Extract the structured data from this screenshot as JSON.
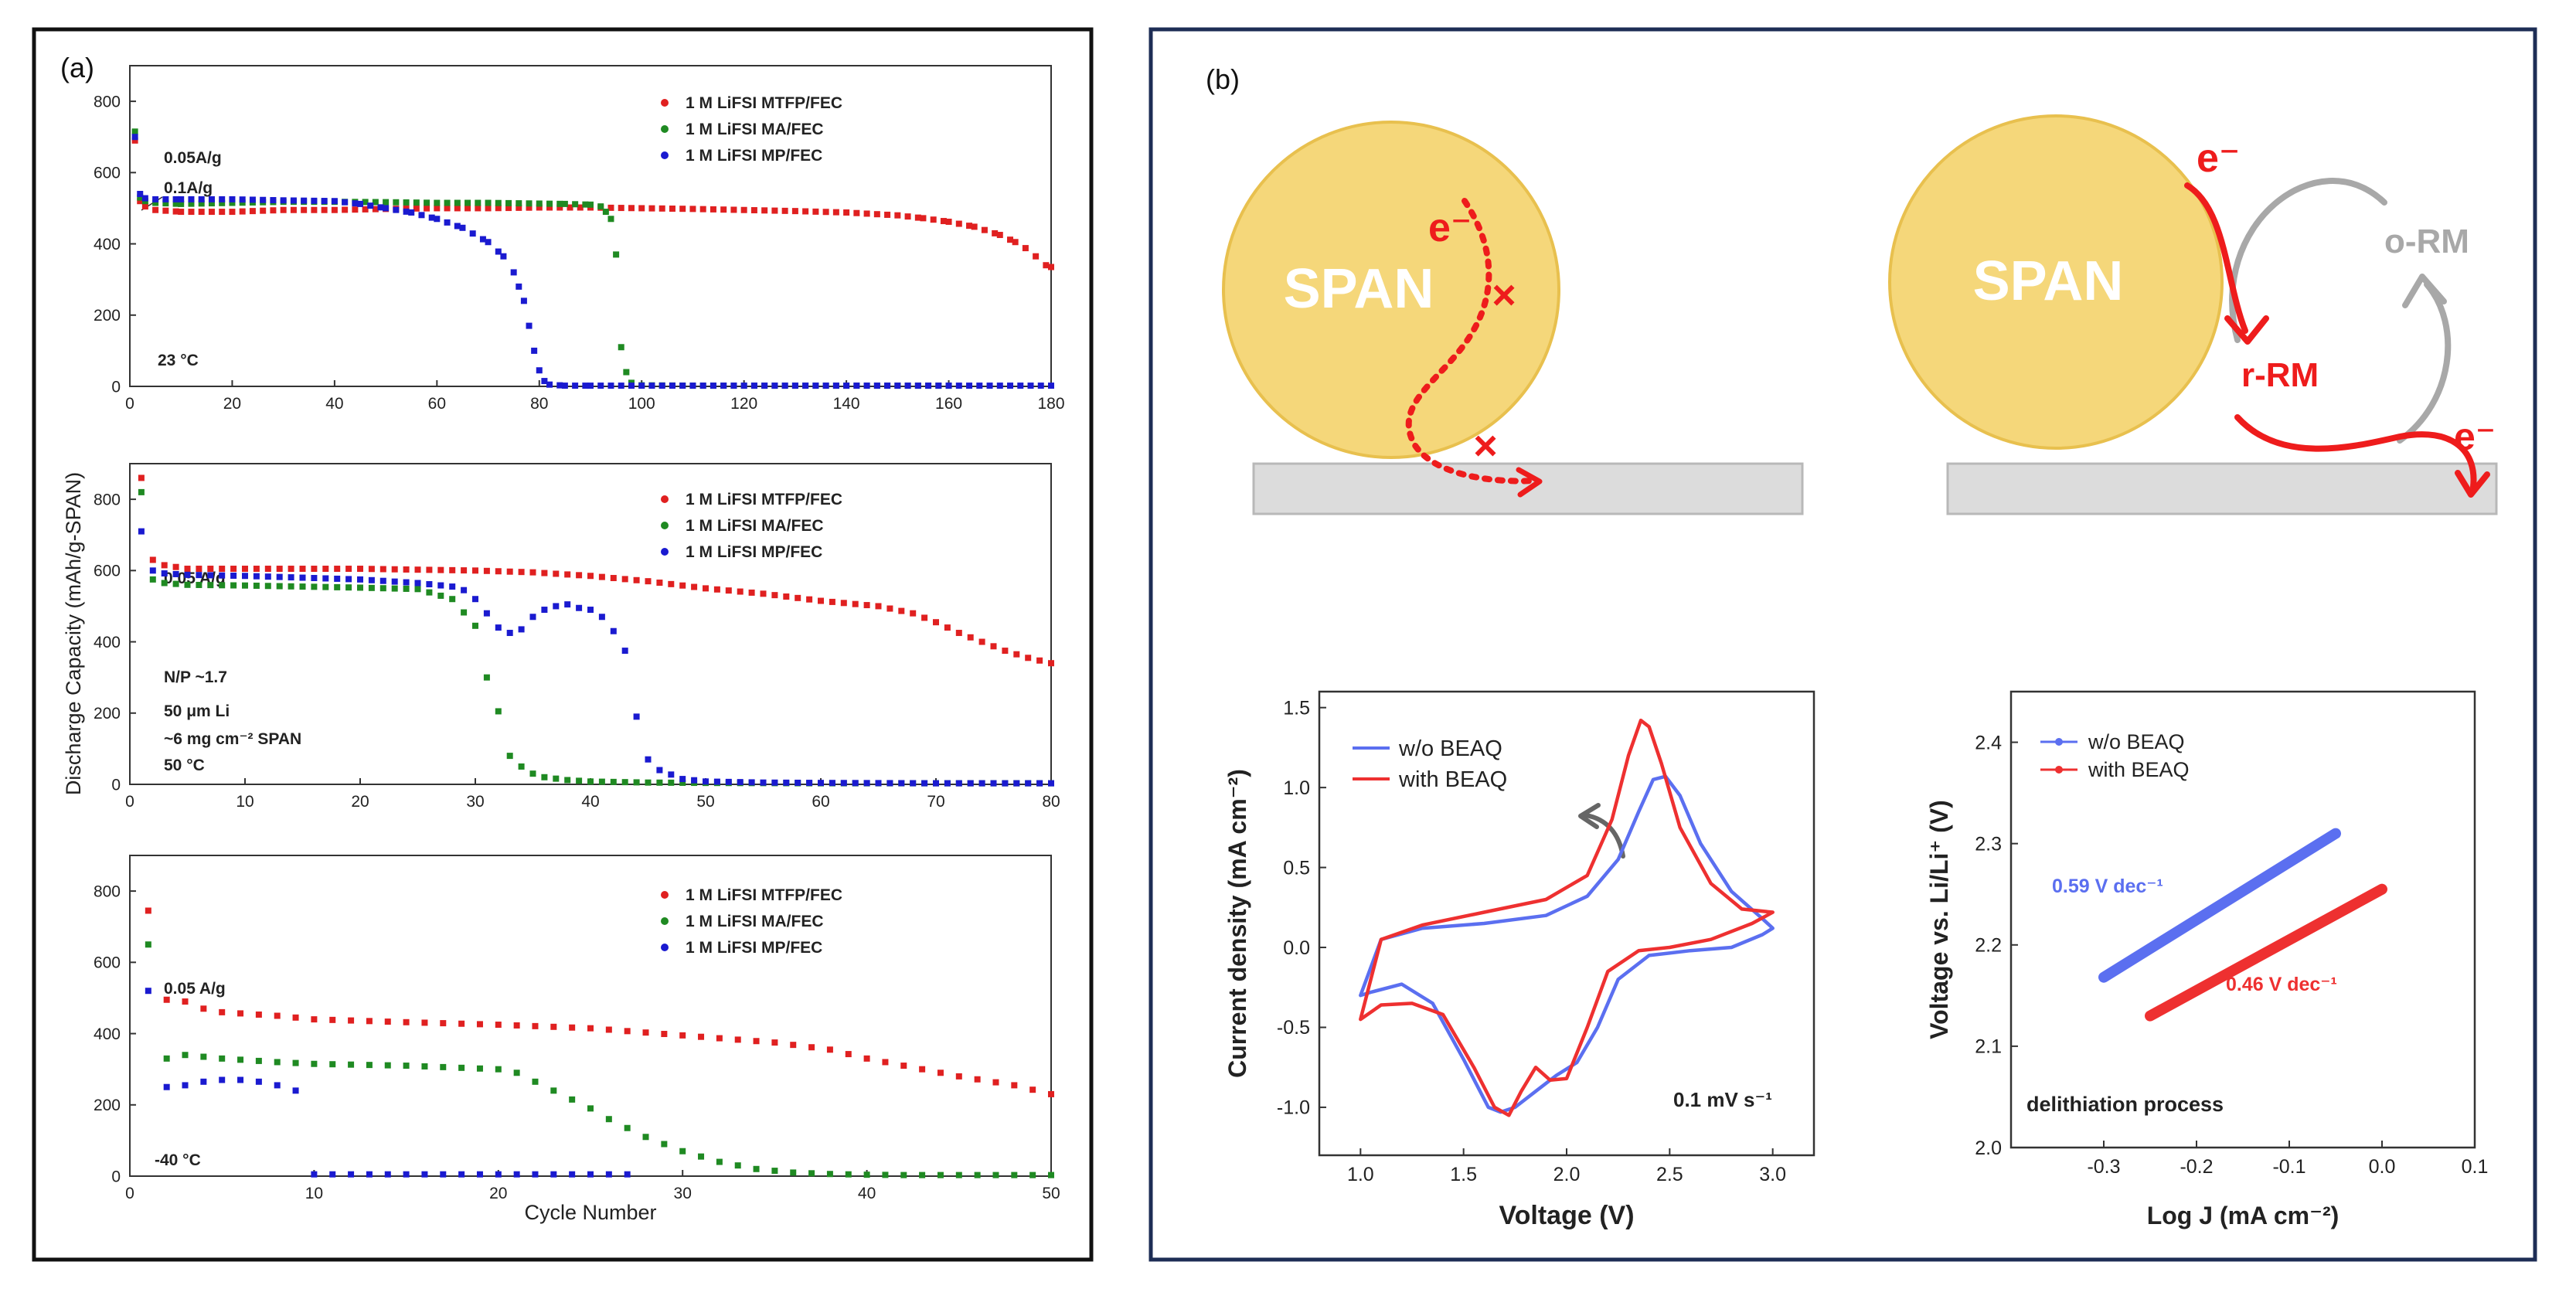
{
  "panel_labels": {
    "a": "(a)",
    "b": "(b)"
  },
  "shared": {
    "ylabel": "Discharge Capacity (mAh/g-SPAN)",
    "xlabel": "Cycle Number"
  },
  "schematic": {
    "left": {
      "particle": "SPAN",
      "electron": "e⁻",
      "block1": "×",
      "block2": "×"
    },
    "right": {
      "particle": "SPAN",
      "electron_in": "e⁻",
      "rrm": "r-RM",
      "orm": "o-RM",
      "electron_out": "e⁻"
    }
  },
  "colors": {
    "red": "#e02020",
    "green": "#1f8a22",
    "blue": "#1a1ad0",
    "cv_blue": "#5b6ff0",
    "cv_red": "#ee3030",
    "span_fill": "#f5d77a",
    "span_edge": "#e8c04e",
    "arrow_red": "#ee1c1c",
    "arrow_gray": "#a8a8a8",
    "collector": "#dcdcdc"
  },
  "chart_data": [
    {
      "id": "a1",
      "type": "scatter",
      "title": "",
      "xlabel": "",
      "ylabel": "Discharge Capacity (mAh/g-SPAN)",
      "xlim": [
        0,
        180
      ],
      "ylim": [
        0,
        900
      ],
      "xticks": [
        0,
        20,
        40,
        60,
        80,
        100,
        120,
        140,
        160,
        180
      ],
      "yticks": [
        0,
        200,
        400,
        600,
        800
      ],
      "annotations": [
        "0.05A/g",
        "0.1A/g",
        "23 °C"
      ],
      "legend": "top-right",
      "series": [
        {
          "name": "1 M LiFSI MTFP/FEC",
          "color": "#e02020",
          "x": [
            1,
            2,
            3,
            5,
            10,
            20,
            30,
            40,
            50,
            60,
            70,
            80,
            90,
            100,
            110,
            120,
            130,
            140,
            150,
            155,
            160,
            165,
            170,
            173,
            175,
            177,
            179,
            180
          ],
          "y": [
            690,
            520,
            505,
            495,
            490,
            490,
            495,
            495,
            498,
            500,
            500,
            502,
            502,
            500,
            498,
            495,
            492,
            488,
            480,
            472,
            462,
            448,
            425,
            405,
            388,
            365,
            340,
            335
          ]
        },
        {
          "name": "1 M LiFSI MA/FEC",
          "color": "#1f8a22",
          "x": [
            1,
            2,
            3,
            5,
            10,
            20,
            30,
            40,
            50,
            60,
            70,
            80,
            85,
            90,
            92,
            93,
            94,
            95,
            96,
            97,
            98,
            100,
            110,
            120,
            140,
            160
          ],
          "y": [
            715,
            530,
            520,
            515,
            512,
            515,
            518,
            518,
            517,
            515,
            515,
            513,
            512,
            510,
            505,
            490,
            470,
            370,
            110,
            40,
            10,
            3,
            2,
            2,
            2,
            2
          ]
        },
        {
          "name": "1 M LiFSI MP/FEC",
          "color": "#1a1ad0",
          "x": [
            1,
            2,
            3,
            5,
            10,
            20,
            30,
            40,
            45,
            50,
            55,
            60,
            65,
            70,
            73,
            75,
            76,
            77,
            78,
            79,
            80,
            81,
            82,
            85,
            90,
            100,
            120,
            140,
            160,
            180
          ],
          "y": [
            700,
            540,
            528,
            525,
            525,
            525,
            522,
            520,
            512,
            500,
            488,
            470,
            445,
            405,
            365,
            320,
            280,
            240,
            170,
            100,
            45,
            15,
            5,
            2,
            2,
            2,
            2,
            2,
            2,
            2
          ]
        }
      ]
    },
    {
      "id": "a2",
      "type": "scatter",
      "title": "",
      "xlabel": "",
      "ylabel": "Discharge Capacity (mAh/g-SPAN)",
      "xlim": [
        0,
        80
      ],
      "ylim": [
        0,
        900
      ],
      "xticks": [
        0,
        10,
        20,
        30,
        40,
        50,
        60,
        70,
        80
      ],
      "yticks": [
        0,
        200,
        400,
        600,
        800
      ],
      "annotations": [
        "0.05 A/g",
        "N/P ~1.7",
        "50 μm Li",
        "~6 mg cm⁻² SPAN",
        "50 °C"
      ],
      "legend": "top-right",
      "series": [
        {
          "name": "1 M LiFSI MTFP/FEC",
          "color": "#e02020",
          "x": [
            1,
            2,
            3,
            4,
            5,
            10,
            20,
            30,
            35,
            40,
            45,
            50,
            55,
            60,
            65,
            68,
            70,
            72,
            74,
            76,
            78,
            80
          ],
          "y": [
            860,
            630,
            615,
            610,
            605,
            605,
            605,
            600,
            595,
            585,
            570,
            550,
            535,
            515,
            500,
            480,
            455,
            425,
            400,
            375,
            355,
            340
          ]
        },
        {
          "name": "1 M LiFSI MA/FEC",
          "color": "#1f8a22",
          "x": [
            1,
            2,
            3,
            5,
            10,
            15,
            20,
            25,
            28,
            30,
            31,
            32,
            33,
            34,
            35,
            36,
            38,
            40,
            45,
            50,
            60,
            70,
            80
          ],
          "y": [
            820,
            575,
            565,
            560,
            558,
            555,
            552,
            548,
            520,
            445,
            300,
            205,
            80,
            50,
            30,
            20,
            12,
            8,
            5,
            4,
            3,
            3,
            3
          ]
        },
        {
          "name": "1 M LiFSI MP/FEC",
          "color": "#1a1ad0",
          "x": [
            1,
            2,
            3,
            5,
            10,
            15,
            20,
            25,
            28,
            29,
            30,
            31,
            32,
            33,
            34,
            35,
            36,
            37,
            38,
            39,
            40,
            41,
            42,
            43,
            44,
            45,
            46,
            48,
            50,
            55,
            60,
            70,
            80
          ],
          "y": [
            710,
            600,
            592,
            588,
            585,
            580,
            575,
            565,
            555,
            545,
            520,
            480,
            440,
            425,
            435,
            470,
            490,
            500,
            505,
            495,
            490,
            470,
            430,
            375,
            190,
            70,
            40,
            15,
            8,
            5,
            4,
            3,
            3
          ]
        }
      ]
    },
    {
      "id": "a3",
      "type": "scatter",
      "title": "",
      "xlabel": "Cycle Number",
      "ylabel": "Discharge Capacity (mAh/g-SPAN)",
      "xlim": [
        0,
        50
      ],
      "ylim": [
        0,
        900
      ],
      "xticks": [
        0,
        10,
        20,
        30,
        40,
        50
      ],
      "yticks": [
        0,
        200,
        400,
        600,
        800
      ],
      "annotations": [
        "0.05 A/g",
        "-40 °C"
      ],
      "legend": "top-right",
      "series": [
        {
          "name": "1 M LiFSI MTFP/FEC",
          "color": "#e02020",
          "x": [
            1,
            2,
            3,
            4,
            5,
            8,
            10,
            15,
            20,
            25,
            30,
            35,
            38,
            40,
            43,
            45,
            48,
            50
          ],
          "y": [
            745,
            495,
            490,
            470,
            460,
            450,
            440,
            432,
            425,
            415,
            395,
            375,
            355,
            330,
            300,
            280,
            255,
            230
          ]
        },
        {
          "name": "1 M LiFSI MA/FEC",
          "color": "#1f8a22",
          "x": [
            1,
            2,
            3,
            4,
            5,
            8,
            10,
            15,
            20,
            21,
            22,
            23,
            24,
            25,
            26,
            27,
            28,
            30,
            32,
            34,
            36,
            38,
            40,
            42,
            45,
            48,
            50
          ],
          "y": [
            650,
            330,
            340,
            335,
            330,
            320,
            315,
            310,
            300,
            290,
            265,
            240,
            215,
            190,
            160,
            135,
            110,
            70,
            40,
            20,
            10,
            6,
            4,
            3,
            3,
            3,
            3
          ]
        },
        {
          "name": "1 M LiFSI MP/FEC",
          "color": "#1a1ad0",
          "x": [
            1,
            2,
            3,
            4,
            5,
            6,
            7,
            8,
            9,
            10,
            12,
            15,
            18,
            20,
            22,
            25,
            27
          ],
          "y": [
            520,
            250,
            255,
            265,
            270,
            270,
            265,
            255,
            240,
            5,
            5,
            5,
            5,
            5,
            5,
            5,
            5
          ]
        }
      ]
    },
    {
      "id": "b_cv",
      "type": "line",
      "title": "",
      "xlabel": "Voltage (V)",
      "ylabel": "Current density (mA cm⁻²)",
      "xlim": [
        0.8,
        3.2
      ],
      "ylim": [
        -1.3,
        1.6
      ],
      "xticks": [
        1.0,
        1.5,
        2.0,
        2.5,
        3.0
      ],
      "yticks": [
        -1.0,
        -0.5,
        0.0,
        0.5,
        1.0,
        1.5
      ],
      "annotations": [
        "0.1 mV s⁻¹"
      ],
      "legend": "top-left",
      "series": [
        {
          "name": "w/o BEAQ",
          "color": "#5b6ff0",
          "x": [
            1.0,
            1.1,
            1.3,
            1.6,
            1.9,
            2.1,
            2.25,
            2.35,
            2.42,
            2.48,
            2.55,
            2.65,
            2.8,
            2.95,
            3.0,
            2.95,
            2.8,
            2.6,
            2.4,
            2.25,
            2.15,
            2.05,
            1.95,
            1.85,
            1.75,
            1.68,
            1.62,
            1.5,
            1.35,
            1.2,
            1.05,
            1.0
          ],
          "y": [
            -0.3,
            0.05,
            0.12,
            0.15,
            0.2,
            0.32,
            0.55,
            0.85,
            1.05,
            1.07,
            0.95,
            0.65,
            0.35,
            0.18,
            0.12,
            0.08,
            0.0,
            -0.02,
            -0.05,
            -0.2,
            -0.5,
            -0.72,
            -0.8,
            -0.9,
            -1.0,
            -1.03,
            -1.0,
            -0.7,
            -0.35,
            -0.23,
            -0.28,
            -0.3
          ]
        },
        {
          "name": "with BEAQ",
          "color": "#ee3030",
          "x": [
            1.0,
            1.1,
            1.3,
            1.6,
            1.9,
            2.1,
            2.22,
            2.3,
            2.36,
            2.4,
            2.46,
            2.55,
            2.7,
            2.85,
            3.0,
            2.9,
            2.7,
            2.5,
            2.35,
            2.2,
            2.1,
            2.0,
            1.92,
            1.85,
            1.78,
            1.72,
            1.65,
            1.55,
            1.4,
            1.25,
            1.1,
            1.0
          ],
          "y": [
            -0.45,
            0.05,
            0.14,
            0.22,
            0.3,
            0.45,
            0.8,
            1.2,
            1.42,
            1.38,
            1.15,
            0.75,
            0.4,
            0.24,
            0.22,
            0.15,
            0.05,
            0.0,
            -0.02,
            -0.15,
            -0.5,
            -0.82,
            -0.83,
            -0.75,
            -0.9,
            -1.05,
            -1.0,
            -0.75,
            -0.42,
            -0.35,
            -0.36,
            -0.45
          ]
        }
      ]
    },
    {
      "id": "b_tafel",
      "type": "scatter",
      "title": "",
      "xlabel": "Log J (mA cm⁻²)",
      "ylabel": "Voltage vs. Li/Li⁺ (V)",
      "xlim": [
        -0.4,
        0.1
      ],
      "ylim": [
        2.0,
        2.45
      ],
      "xticks": [
        -0.3,
        -0.2,
        -0.1,
        0.0,
        0.1
      ],
      "yticks": [
        2.0,
        2.1,
        2.2,
        2.3,
        2.4
      ],
      "annotations": [
        "0.59 V dec⁻¹",
        "0.46 V dec⁻¹",
        "delithiation process"
      ],
      "legend": "top-left",
      "series": [
        {
          "name": "w/o BEAQ",
          "color": "#5b6ff0",
          "x": [
            -0.3,
            -0.05
          ],
          "y": [
            2.168,
            2.31
          ]
        },
        {
          "name": "with BEAQ",
          "color": "#ee3030",
          "x": [
            -0.25,
            0.0
          ],
          "y": [
            2.13,
            2.255
          ]
        }
      ]
    }
  ]
}
